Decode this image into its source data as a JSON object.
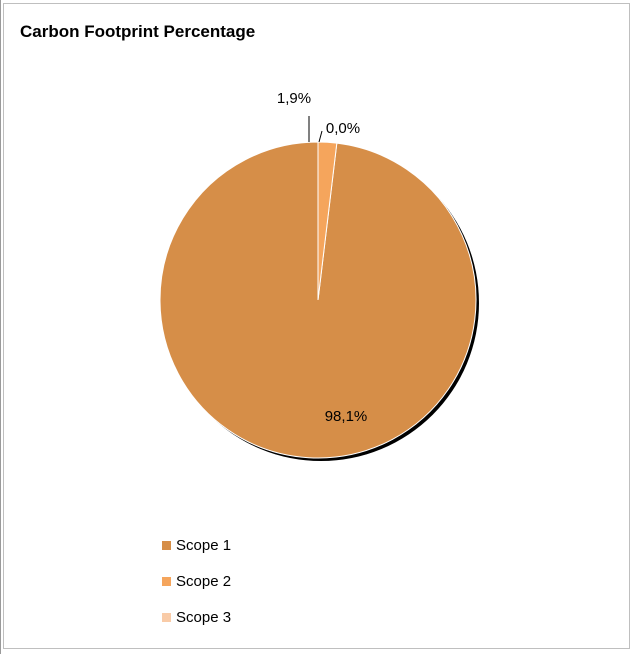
{
  "title": "Carbon Footprint Percentage",
  "chart_data": {
    "type": "pie",
    "title": "Carbon Footprint Percentage",
    "categories": [
      "Scope 1",
      "Scope 2",
      "Scope 3"
    ],
    "values": [
      98.1,
      1.9,
      0.0
    ],
    "labels": [
      "98,1%",
      "1,9%",
      "0,0%"
    ],
    "colors": [
      "#D68E48",
      "#F5A55C",
      "#F9CBA7"
    ],
    "legend": "bottom-left"
  },
  "legend": {
    "items": [
      {
        "label": "Scope 1",
        "color": "#D68E48"
      },
      {
        "label": "Scope 2",
        "color": "#F5A55C"
      },
      {
        "label": "Scope 3",
        "color": "#F9CBA7"
      }
    ]
  }
}
